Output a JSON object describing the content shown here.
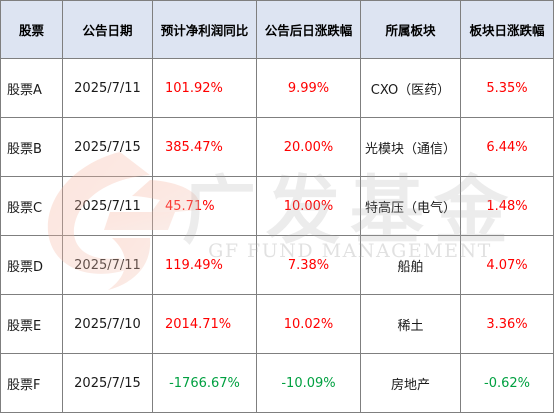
{
  "table": {
    "headers": [
      "股票",
      "公告日期",
      "预计净利润同比",
      "公告后日涨跌幅",
      "所属板块",
      "板块日涨跌幅"
    ],
    "rows": [
      {
        "stock": "股票A",
        "date": "2025/7/11",
        "profit_yoy": "101.92%",
        "post_change": "9.99%",
        "sector": "CXO（医药）",
        "sector_change": "5.35%"
      },
      {
        "stock": "股票B",
        "date": "2025/7/15",
        "profit_yoy": "385.47%",
        "post_change": "20.00%",
        "sector": "光模块（通信）",
        "sector_change": "6.44%"
      },
      {
        "stock": "股票C",
        "date": "2025/7/11",
        "profit_yoy": "45.71%",
        "post_change": "10.00%",
        "sector": "特高压（电气）",
        "sector_change": "1.48%"
      },
      {
        "stock": "股票D",
        "date": "2025/7/11",
        "profit_yoy": "119.49%",
        "post_change": "7.38%",
        "sector": "船舶",
        "sector_change": "4.07%"
      },
      {
        "stock": "股票E",
        "date": "2025/7/10",
        "profit_yoy": "2014.71%",
        "post_change": "10.02%",
        "sector": "稀土",
        "sector_change": "3.36%"
      },
      {
        "stock": "股票F",
        "date": "2025/7/15",
        "profit_yoy": "-1766.67%",
        "post_change": "-10.09%",
        "sector": "房地产",
        "sector_change": "-0.62%"
      }
    ]
  },
  "watermark": {
    "brand_cn": "广发基金",
    "brand_en": "GF FUND MANAGEMENT"
  },
  "colors": {
    "header_bg": "#dde4f2",
    "positive": "#ff0000",
    "negative": "#00a040",
    "border": "#7f7f7f"
  }
}
